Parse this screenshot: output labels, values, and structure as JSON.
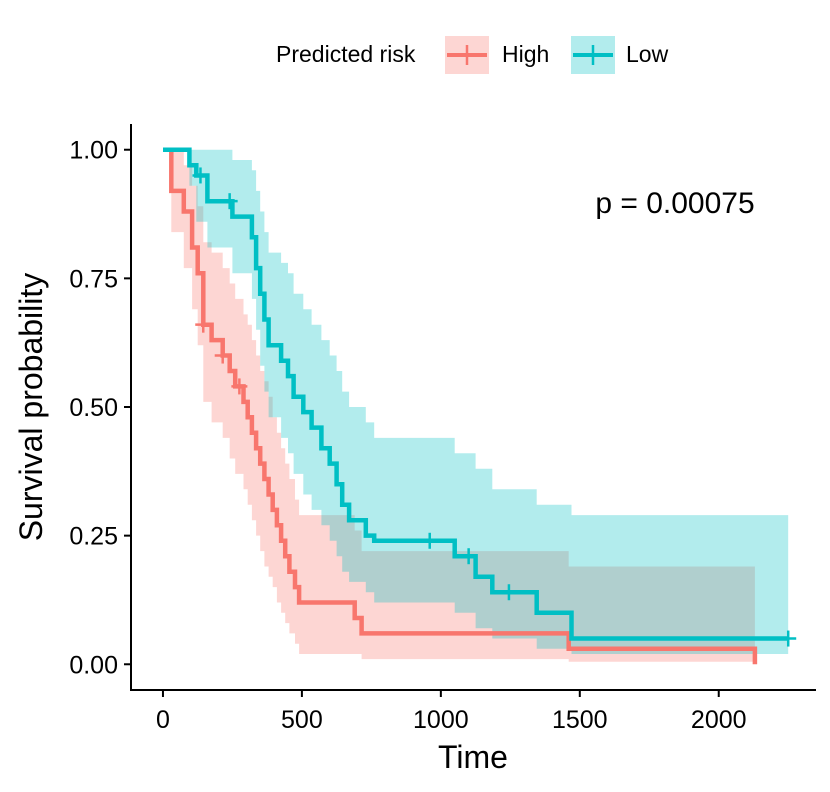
{
  "chart_data": {
    "type": "line",
    "subtype": "kaplan-meier",
    "title": "",
    "xlabel": "Time",
    "ylabel": "Survival probability",
    "xlim": [
      -115,
      2350
    ],
    "ylim": [
      -0.05,
      1.05
    ],
    "x_ticks": [
      0,
      500,
      1000,
      1500,
      2000
    ],
    "x_tick_labels": [
      "0",
      "500",
      "1000",
      "1500",
      "2000"
    ],
    "y_ticks": [
      0,
      0.25,
      0.5,
      0.75,
      1.0
    ],
    "y_tick_labels": [
      "0.00",
      "0.25",
      "0.50",
      "0.75",
      "1.00"
    ],
    "grid": false,
    "annotation": "p = 0.00075",
    "legend": {
      "title": "Predicted risk",
      "position": "top",
      "entries": [
        "High",
        "Low"
      ]
    },
    "series": [
      {
        "name": "High",
        "color": "#F8766D",
        "fill_color": "#F8766D",
        "steps": [
          [
            0,
            1.0
          ],
          [
            30,
            0.92
          ],
          [
            75,
            0.88
          ],
          [
            105,
            0.81
          ],
          [
            125,
            0.76
          ],
          [
            145,
            0.66
          ],
          [
            175,
            0.63
          ],
          [
            215,
            0.6
          ],
          [
            240,
            0.57
          ],
          [
            260,
            0.54
          ],
          [
            290,
            0.51
          ],
          [
            305,
            0.48
          ],
          [
            320,
            0.45
          ],
          [
            335,
            0.42
          ],
          [
            350,
            0.39
          ],
          [
            365,
            0.36
          ],
          [
            380,
            0.33
          ],
          [
            395,
            0.3
          ],
          [
            410,
            0.27
          ],
          [
            425,
            0.24
          ],
          [
            440,
            0.21
          ],
          [
            455,
            0.18
          ],
          [
            475,
            0.15
          ],
          [
            490,
            0.12
          ],
          [
            690,
            0.09
          ],
          [
            715,
            0.06
          ],
          [
            1460,
            0.03
          ],
          [
            2130,
            0.0
          ]
        ],
        "censor_times": [
          145,
          215,
          275
        ],
        "ci_upper": [
          [
            0,
            1.0
          ],
          [
            30,
            1.0
          ],
          [
            75,
            0.97
          ],
          [
            105,
            0.93
          ],
          [
            125,
            0.89
          ],
          [
            145,
            0.82
          ],
          [
            175,
            0.8
          ],
          [
            215,
            0.77
          ],
          [
            240,
            0.74
          ],
          [
            260,
            0.71
          ],
          [
            290,
            0.68
          ],
          [
            305,
            0.66
          ],
          [
            320,
            0.63
          ],
          [
            335,
            0.6
          ],
          [
            350,
            0.57
          ],
          [
            365,
            0.55
          ],
          [
            380,
            0.52
          ],
          [
            395,
            0.48
          ],
          [
            410,
            0.45
          ],
          [
            425,
            0.42
          ],
          [
            440,
            0.39
          ],
          [
            455,
            0.36
          ],
          [
            475,
            0.32
          ],
          [
            490,
            0.29
          ],
          [
            690,
            0.26
          ],
          [
            715,
            0.22
          ],
          [
            1460,
            0.19
          ],
          [
            2130,
            0.19
          ]
        ],
        "ci_lower": [
          [
            0,
            1.0
          ],
          [
            30,
            0.84
          ],
          [
            75,
            0.77
          ],
          [
            105,
            0.69
          ],
          [
            125,
            0.62
          ],
          [
            145,
            0.51
          ],
          [
            175,
            0.47
          ],
          [
            215,
            0.44
          ],
          [
            240,
            0.4
          ],
          [
            260,
            0.37
          ],
          [
            290,
            0.34
          ],
          [
            305,
            0.31
          ],
          [
            320,
            0.28
          ],
          [
            335,
            0.25
          ],
          [
            350,
            0.22
          ],
          [
            365,
            0.19
          ],
          [
            380,
            0.17
          ],
          [
            395,
            0.15
          ],
          [
            410,
            0.12
          ],
          [
            425,
            0.1
          ],
          [
            440,
            0.08
          ],
          [
            455,
            0.06
          ],
          [
            475,
            0.04
          ],
          [
            490,
            0.02
          ],
          [
            690,
            0.02
          ],
          [
            715,
            0.01
          ],
          [
            1460,
            0.005
          ],
          [
            2130,
            0.0
          ]
        ]
      },
      {
        "name": "Low",
        "color": "#00BFC4",
        "fill_color": "#00BFC4",
        "steps": [
          [
            0,
            1.0
          ],
          [
            95,
            0.97
          ],
          [
            120,
            0.95
          ],
          [
            160,
            0.9
          ],
          [
            250,
            0.87
          ],
          [
            320,
            0.83
          ],
          [
            335,
            0.77
          ],
          [
            350,
            0.72
          ],
          [
            365,
            0.67
          ],
          [
            380,
            0.62
          ],
          [
            425,
            0.59
          ],
          [
            450,
            0.56
          ],
          [
            470,
            0.52
          ],
          [
            505,
            0.49
          ],
          [
            535,
            0.46
          ],
          [
            570,
            0.42
          ],
          [
            600,
            0.39
          ],
          [
            625,
            0.35
          ],
          [
            645,
            0.31
          ],
          [
            670,
            0.28
          ],
          [
            730,
            0.25
          ],
          [
            760,
            0.24
          ],
          [
            1050,
            0.21
          ],
          [
            1125,
            0.17
          ],
          [
            1185,
            0.14
          ],
          [
            1345,
            0.1
          ],
          [
            1470,
            0.05
          ],
          [
            2250,
            0.05
          ]
        ],
        "censor_times": [
          135,
          240,
          960,
          1100,
          1245,
          2250
        ],
        "ci_upper": [
          [
            0,
            1.0
          ],
          [
            95,
            1.0
          ],
          [
            120,
            1.0
          ],
          [
            160,
            1.0
          ],
          [
            250,
            0.98
          ],
          [
            320,
            0.96
          ],
          [
            335,
            0.92
          ],
          [
            350,
            0.88
          ],
          [
            365,
            0.84
          ],
          [
            380,
            0.8
          ],
          [
            425,
            0.78
          ],
          [
            450,
            0.76
          ],
          [
            470,
            0.72
          ],
          [
            505,
            0.69
          ],
          [
            535,
            0.66
          ],
          [
            570,
            0.63
          ],
          [
            600,
            0.6
          ],
          [
            625,
            0.57
          ],
          [
            645,
            0.53
          ],
          [
            670,
            0.5
          ],
          [
            730,
            0.47
          ],
          [
            760,
            0.44
          ],
          [
            1050,
            0.41
          ],
          [
            1125,
            0.38
          ],
          [
            1185,
            0.34
          ],
          [
            1345,
            0.31
          ],
          [
            1470,
            0.29
          ],
          [
            2250,
            0.29
          ]
        ],
        "ci_lower": [
          [
            0,
            1.0
          ],
          [
            95,
            0.93
          ],
          [
            120,
            0.86
          ],
          [
            160,
            0.81
          ],
          [
            250,
            0.76
          ],
          [
            320,
            0.71
          ],
          [
            335,
            0.65
          ],
          [
            350,
            0.58
          ],
          [
            365,
            0.53
          ],
          [
            380,
            0.48
          ],
          [
            425,
            0.44
          ],
          [
            450,
            0.41
          ],
          [
            470,
            0.37
          ],
          [
            505,
            0.33
          ],
          [
            535,
            0.3
          ],
          [
            570,
            0.27
          ],
          [
            600,
            0.24
          ],
          [
            625,
            0.21
          ],
          [
            645,
            0.18
          ],
          [
            670,
            0.16
          ],
          [
            730,
            0.14
          ],
          [
            760,
            0.12
          ],
          [
            1050,
            0.1
          ],
          [
            1125,
            0.07
          ],
          [
            1185,
            0.05
          ],
          [
            1345,
            0.03
          ],
          [
            1470,
            0.02
          ],
          [
            2250,
            0.02
          ]
        ]
      }
    ]
  }
}
